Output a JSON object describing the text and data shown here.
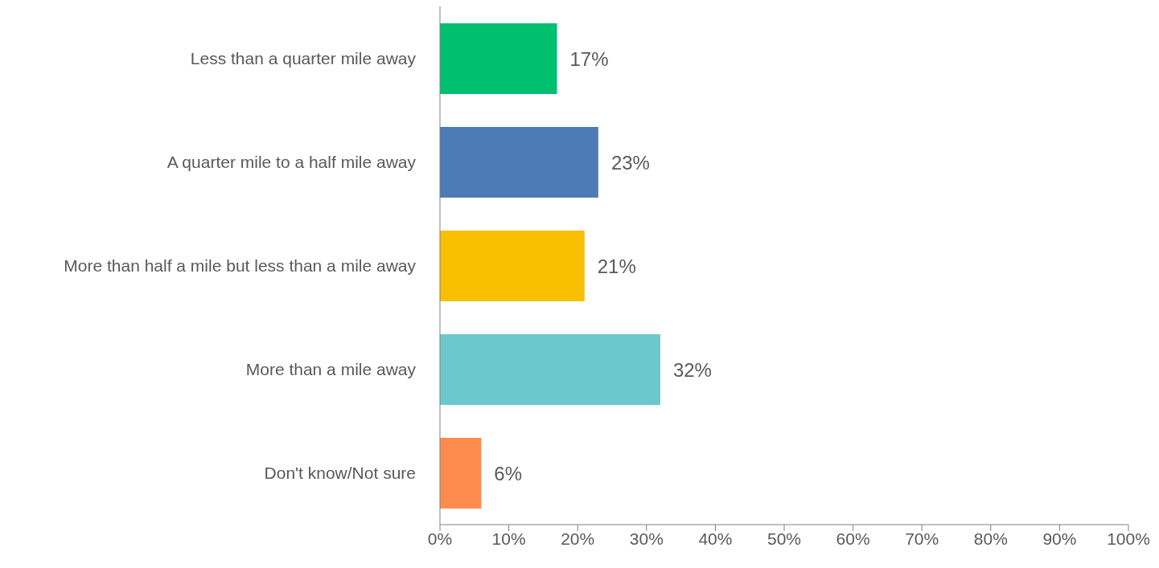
{
  "chart_data": {
    "type": "bar",
    "orientation": "horizontal",
    "categories": [
      "Less than a quarter mile away",
      "A quarter mile to a half mile away",
      "More than half a mile but less than a mile away",
      "More than a mile away",
      "Don't know/Not sure"
    ],
    "values": [
      17,
      23,
      21,
      32,
      6
    ],
    "colors": [
      "#00bf6f",
      "#4e7ab5",
      "#f7bf00",
      "#6bc8cc",
      "#ff8c4f"
    ],
    "value_labels": [
      "17%",
      "23%",
      "21%",
      "32%",
      "6%"
    ],
    "xlim": [
      0,
      100
    ],
    "xticks": [
      {
        "value": 0,
        "label": "0%"
      },
      {
        "value": 10,
        "label": "10%"
      },
      {
        "value": 20,
        "label": "20%"
      },
      {
        "value": 30,
        "label": "30%"
      },
      {
        "value": 40,
        "label": "40%"
      },
      {
        "value": 50,
        "label": "50%"
      },
      {
        "value": 60,
        "label": "60%"
      },
      {
        "value": 70,
        "label": "70%"
      },
      {
        "value": 80,
        "label": "80%"
      },
      {
        "value": 90,
        "label": "90%"
      },
      {
        "value": 100,
        "label": "100%"
      }
    ],
    "grid": false
  }
}
